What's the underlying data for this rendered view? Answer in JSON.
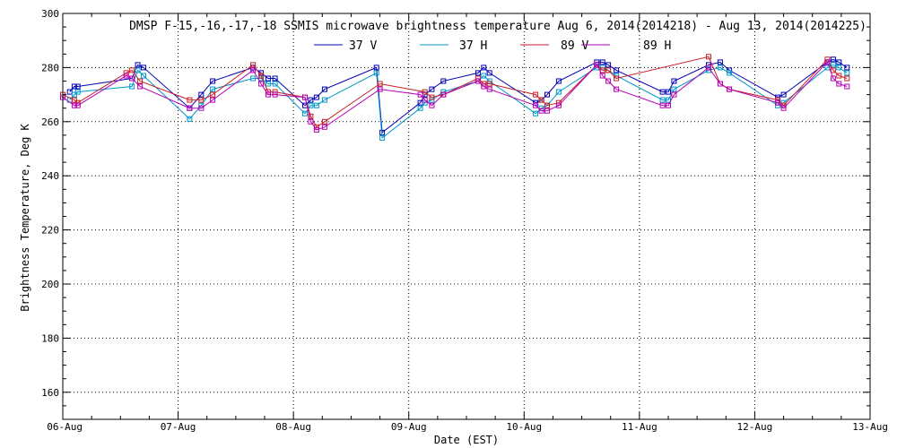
{
  "chart_data": {
    "type": "line",
    "title": "DMSP F-15,-16,-17,-18 SSMIS microwave brightness temperature Aug  6, 2014(2014218) - Aug 13, 2014(2014225)",
    "xlabel": "Date (EST)",
    "ylabel": "Brightness Temperature, Deg K",
    "ylim": [
      150,
      300
    ],
    "xlim": [
      0,
      7
    ],
    "yticks": [
      160,
      180,
      200,
      220,
      240,
      260,
      280,
      300
    ],
    "ytick_labels": [
      "160",
      "180",
      "200",
      "220",
      "240",
      "260",
      "280",
      "300"
    ],
    "xticks": [
      0,
      1,
      2,
      3,
      4,
      5,
      6,
      7
    ],
    "xtick_labels": [
      "06-Aug",
      "07-Aug",
      "08-Aug",
      "09-Aug",
      "10-Aug",
      "11-Aug",
      "12-Aug",
      "13-Aug"
    ],
    "grid": true,
    "legend_position": "top-center",
    "series": [
      {
        "name": "37 V",
        "color": "#0000b4",
        "x": [
          0.06,
          0.1,
          0.13,
          0.6,
          0.65,
          0.7,
          1.1,
          1.2,
          1.3,
          1.65,
          1.72,
          1.78,
          1.84,
          2.1,
          2.15,
          2.2,
          2.27,
          2.72,
          2.77,
          3.1,
          3.14,
          3.2,
          3.3,
          3.6,
          3.65,
          3.7,
          4.1,
          4.15,
          4.2,
          4.3,
          4.63,
          4.68,
          4.73,
          4.8,
          5.2,
          5.25,
          5.3,
          5.6,
          5.7,
          5.78,
          6.2,
          6.25,
          6.63,
          6.68,
          6.73,
          6.8
        ],
        "y": [
          271,
          273,
          273,
          276,
          281,
          280,
          265,
          270,
          275,
          280,
          278,
          276,
          276,
          266,
          268,
          269,
          272,
          280,
          256,
          267,
          270,
          272,
          275,
          278,
          280,
          278,
          267,
          268,
          270,
          275,
          282,
          282,
          281,
          279,
          271,
          271,
          275,
          281,
          282,
          279,
          269,
          270,
          282,
          283,
          282,
          280
        ]
      },
      {
        "name": "37 H",
        "color": "#0096c8",
        "x": [
          0.06,
          0.1,
          0.13,
          0.6,
          0.65,
          0.7,
          1.1,
          1.2,
          1.3,
          1.65,
          1.72,
          1.78,
          1.84,
          2.1,
          2.15,
          2.2,
          2.27,
          2.72,
          2.77,
          3.1,
          3.14,
          3.2,
          3.3,
          3.6,
          3.65,
          3.7,
          4.1,
          4.15,
          4.2,
          4.3,
          4.63,
          4.68,
          4.73,
          4.8,
          5.2,
          5.25,
          5.3,
          5.6,
          5.7,
          5.78,
          6.2,
          6.25,
          6.63,
          6.68,
          6.73,
          6.8
        ],
        "y": [
          268,
          270,
          271,
          273,
          279,
          277,
          261,
          266,
          272,
          276,
          276,
          274,
          274,
          263,
          266,
          266,
          268,
          278,
          254,
          265,
          267,
          268,
          271,
          275,
          277,
          275,
          263,
          265,
          266,
          271,
          280,
          280,
          279,
          277,
          268,
          268,
          272,
          279,
          280,
          278,
          266,
          267,
          280,
          281,
          280,
          278
        ]
      },
      {
        "name": "89 V",
        "color": "#c81e28",
        "x": [
          0.0,
          0.1,
          0.13,
          0.55,
          0.6,
          0.67,
          1.1,
          1.2,
          1.3,
          1.65,
          1.72,
          1.78,
          1.84,
          2.1,
          2.15,
          2.2,
          2.27,
          2.75,
          3.14,
          3.2,
          3.3,
          3.6,
          3.65,
          3.7,
          4.1,
          4.15,
          4.2,
          4.3,
          4.63,
          4.68,
          4.73,
          4.8,
          5.6,
          5.7,
          5.78,
          6.2,
          6.25,
          6.63,
          6.68,
          6.73,
          6.8
        ],
        "y": [
          270,
          268,
          267,
          278,
          279,
          275,
          268,
          268,
          270,
          281,
          277,
          271,
          271,
          269,
          262,
          258,
          260,
          274,
          271,
          269,
          270,
          276,
          274,
          274,
          270,
          268,
          266,
          267,
          281,
          279,
          279,
          276,
          284,
          274,
          272,
          268,
          266,
          283,
          279,
          277,
          276
        ]
      },
      {
        "name": "89 H",
        "color": "#b400b4",
        "x": [
          0.0,
          0.1,
          0.13,
          0.55,
          0.6,
          0.67,
          1.1,
          1.2,
          1.3,
          1.65,
          1.72,
          1.78,
          1.84,
          2.1,
          2.15,
          2.2,
          2.27,
          2.75,
          3.1,
          3.14,
          3.2,
          3.3,
          3.6,
          3.65,
          3.7,
          4.1,
          4.15,
          4.2,
          4.3,
          4.63,
          4.68,
          4.73,
          4.8,
          5.2,
          5.25,
          5.3,
          5.6,
          5.7,
          5.78,
          6.2,
          6.25,
          6.63,
          6.68,
          6.73,
          6.8
        ],
        "y": [
          269,
          266,
          266,
          277,
          276,
          273,
          265,
          265,
          268,
          279,
          274,
          270,
          270,
          269,
          260,
          257,
          258,
          272,
          270,
          268,
          266,
          270,
          275,
          273,
          272,
          266,
          264,
          264,
          266,
          281,
          277,
          275,
          272,
          266,
          266,
          270,
          280,
          274,
          272,
          267,
          265,
          282,
          276,
          274,
          273
        ]
      }
    ]
  }
}
